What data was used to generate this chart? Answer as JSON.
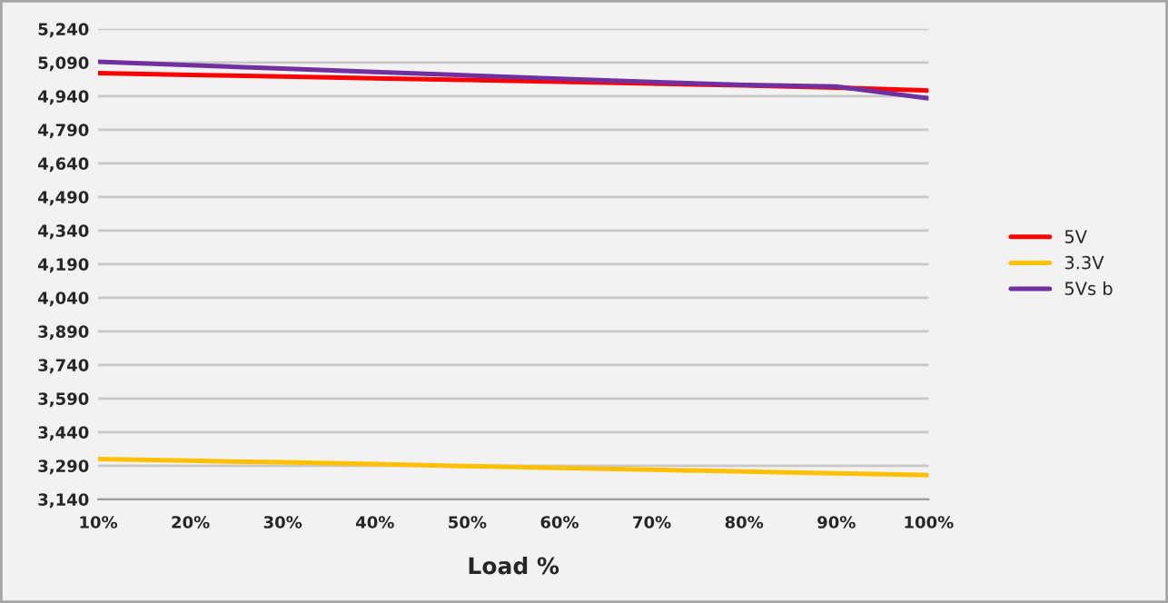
{
  "chart_data": {
    "type": "line",
    "xlabel": "Load %",
    "categories": [
      "10%",
      "20%",
      "30%",
      "40%",
      "50%",
      "60%",
      "70%",
      "80%",
      "90%",
      "100%"
    ],
    "series": [
      {
        "name": "5V",
        "color": "#ff0000",
        "values": [
          5043,
          5035,
          5028,
          5020,
          5012,
          5004,
          4996,
          4988,
          4978,
          4965
        ]
      },
      {
        "name": "3.3V",
        "color": "#ffc000",
        "values": [
          3320,
          3312,
          3305,
          3297,
          3288,
          3280,
          3272,
          3264,
          3256,
          3248
        ]
      },
      {
        "name": "5Vs b",
        "color": "#7030a0",
        "values": [
          5094,
          5078,
          5063,
          5048,
          5033,
          5018,
          5003,
          4990,
          4983,
          4930
        ]
      }
    ],
    "ylim": [
      3140,
      5240
    ],
    "yticks": [
      {
        "value": 3140,
        "label": "3,140"
      },
      {
        "value": 3290,
        "label": "3,290"
      },
      {
        "value": 3440,
        "label": "3,440"
      },
      {
        "value": 3590,
        "label": "3,590"
      },
      {
        "value": 3740,
        "label": "3,740"
      },
      {
        "value": 3890,
        "label": "3,890"
      },
      {
        "value": 4040,
        "label": "4,040"
      },
      {
        "value": 4190,
        "label": "4,190"
      },
      {
        "value": 4340,
        "label": "4,340"
      },
      {
        "value": 4490,
        "label": "4,490"
      },
      {
        "value": 4640,
        "label": "4,640"
      },
      {
        "value": 4790,
        "label": "4,790"
      },
      {
        "value": 4940,
        "label": "4,940"
      },
      {
        "value": 5090,
        "label": "5,090"
      },
      {
        "value": 5240,
        "label": "5,240"
      }
    ],
    "grid": "y",
    "legend": "right",
    "marker": "none",
    "line_style": "solid"
  }
}
